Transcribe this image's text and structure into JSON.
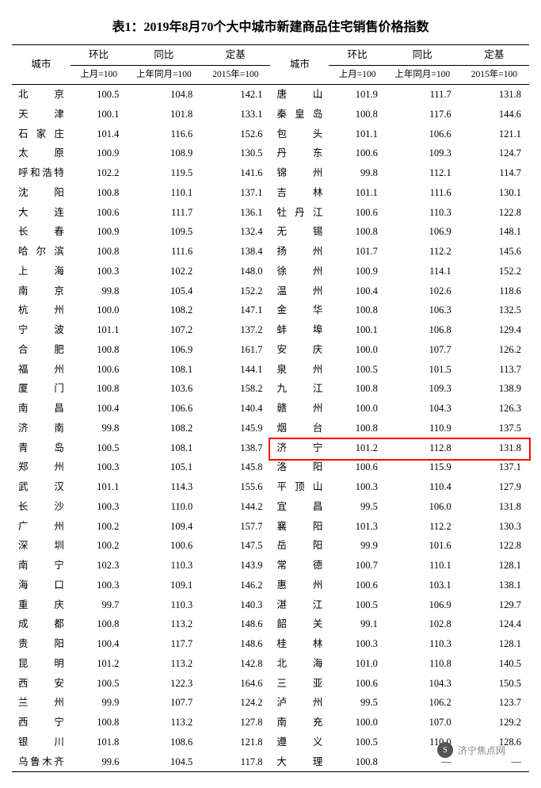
{
  "title": "表1：2019年8月70个大中城市新建商品住宅销售价格指数",
  "headers": {
    "city": "城市",
    "mom": "环比",
    "yoy": "同比",
    "base": "定基",
    "mom_sub": "上月=100",
    "yoy_sub": "上年同月=100",
    "base_sub": "2015年=100"
  },
  "highlight_city": "济　宁",
  "highlight_color": "#ff0000",
  "watermark": "济宁焦点网",
  "left": [
    {
      "city": "北　京",
      "mom": "100.5",
      "yoy": "104.8",
      "base": "142.1"
    },
    {
      "city": "天　津",
      "mom": "100.1",
      "yoy": "101.8",
      "base": "133.1"
    },
    {
      "city": "石家庄",
      "mom": "101.4",
      "yoy": "116.6",
      "base": "152.6"
    },
    {
      "city": "太　原",
      "mom": "100.9",
      "yoy": "108.9",
      "base": "130.5"
    },
    {
      "city": "呼和浩特",
      "mom": "102.2",
      "yoy": "119.5",
      "base": "141.6"
    },
    {
      "city": "沈　阳",
      "mom": "100.8",
      "yoy": "110.1",
      "base": "137.1"
    },
    {
      "city": "大　连",
      "mom": "100.6",
      "yoy": "111.7",
      "base": "136.1"
    },
    {
      "city": "长　春",
      "mom": "100.9",
      "yoy": "109.5",
      "base": "132.4"
    },
    {
      "city": "哈尔滨",
      "mom": "100.8",
      "yoy": "111.6",
      "base": "138.4"
    },
    {
      "city": "上　海",
      "mom": "100.3",
      "yoy": "102.2",
      "base": "148.0"
    },
    {
      "city": "南　京",
      "mom": "99.8",
      "yoy": "105.4",
      "base": "152.2"
    },
    {
      "city": "杭　州",
      "mom": "100.0",
      "yoy": "108.2",
      "base": "147.1"
    },
    {
      "city": "宁　波",
      "mom": "101.1",
      "yoy": "107.2",
      "base": "137.2"
    },
    {
      "city": "合　肥",
      "mom": "100.8",
      "yoy": "106.9",
      "base": "161.7"
    },
    {
      "city": "福　州",
      "mom": "100.6",
      "yoy": "108.1",
      "base": "144.1"
    },
    {
      "city": "厦　门",
      "mom": "100.8",
      "yoy": "103.6",
      "base": "158.2"
    },
    {
      "city": "南　昌",
      "mom": "100.4",
      "yoy": "106.6",
      "base": "140.4"
    },
    {
      "city": "济　南",
      "mom": "99.8",
      "yoy": "108.2",
      "base": "145.9"
    },
    {
      "city": "青　岛",
      "mom": "100.5",
      "yoy": "108.1",
      "base": "138.7"
    },
    {
      "city": "郑　州",
      "mom": "100.3",
      "yoy": "105.1",
      "base": "145.8"
    },
    {
      "city": "武　汉",
      "mom": "101.1",
      "yoy": "114.3",
      "base": "155.6"
    },
    {
      "city": "长　沙",
      "mom": "100.3",
      "yoy": "110.0",
      "base": "144.2"
    },
    {
      "city": "广　州",
      "mom": "100.2",
      "yoy": "109.4",
      "base": "157.7"
    },
    {
      "city": "深　圳",
      "mom": "100.2",
      "yoy": "100.6",
      "base": "147.5"
    },
    {
      "city": "南　宁",
      "mom": "102.3",
      "yoy": "110.3",
      "base": "143.9"
    },
    {
      "city": "海　口",
      "mom": "100.3",
      "yoy": "109.1",
      "base": "146.2"
    },
    {
      "city": "重　庆",
      "mom": "99.7",
      "yoy": "110.3",
      "base": "140.3"
    },
    {
      "city": "成　都",
      "mom": "100.8",
      "yoy": "113.2",
      "base": "148.6"
    },
    {
      "city": "贵　阳",
      "mom": "100.4",
      "yoy": "117.7",
      "base": "148.6"
    },
    {
      "city": "昆　明",
      "mom": "101.2",
      "yoy": "113.2",
      "base": "142.8"
    },
    {
      "city": "西　安",
      "mom": "100.5",
      "yoy": "122.3",
      "base": "164.6"
    },
    {
      "city": "兰　州",
      "mom": "99.9",
      "yoy": "107.7",
      "base": "124.2"
    },
    {
      "city": "西　宁",
      "mom": "100.8",
      "yoy": "113.2",
      "base": "127.8"
    },
    {
      "city": "银　川",
      "mom": "101.8",
      "yoy": "108.6",
      "base": "121.8"
    },
    {
      "city": "乌鲁木齐",
      "mom": "99.6",
      "yoy": "104.5",
      "base": "117.8"
    }
  ],
  "right": [
    {
      "city": "唐　山",
      "mom": "101.9",
      "yoy": "111.7",
      "base": "131.8"
    },
    {
      "city": "秦皇岛",
      "mom": "100.8",
      "yoy": "117.6",
      "base": "144.6"
    },
    {
      "city": "包　头",
      "mom": "101.1",
      "yoy": "106.6",
      "base": "121.1"
    },
    {
      "city": "丹　东",
      "mom": "100.6",
      "yoy": "109.3",
      "base": "124.7"
    },
    {
      "city": "锦　州",
      "mom": "99.8",
      "yoy": "112.1",
      "base": "114.7"
    },
    {
      "city": "吉　林",
      "mom": "101.1",
      "yoy": "111.6",
      "base": "130.1"
    },
    {
      "city": "牡丹江",
      "mom": "100.6",
      "yoy": "110.3",
      "base": "122.8"
    },
    {
      "city": "无　锡",
      "mom": "100.8",
      "yoy": "106.9",
      "base": "148.1"
    },
    {
      "city": "扬　州",
      "mom": "101.7",
      "yoy": "112.2",
      "base": "145.6"
    },
    {
      "city": "徐　州",
      "mom": "100.9",
      "yoy": "114.1",
      "base": "152.2"
    },
    {
      "city": "温　州",
      "mom": "100.4",
      "yoy": "102.6",
      "base": "118.6"
    },
    {
      "city": "金　华",
      "mom": "100.8",
      "yoy": "106.3",
      "base": "132.5"
    },
    {
      "city": "蚌　埠",
      "mom": "100.1",
      "yoy": "106.8",
      "base": "129.4"
    },
    {
      "city": "安　庆",
      "mom": "100.0",
      "yoy": "107.7",
      "base": "126.2"
    },
    {
      "city": "泉　州",
      "mom": "100.5",
      "yoy": "101.5",
      "base": "113.7"
    },
    {
      "city": "九　江",
      "mom": "100.8",
      "yoy": "109.3",
      "base": "138.9"
    },
    {
      "city": "赣　州",
      "mom": "100.0",
      "yoy": "104.3",
      "base": "126.3"
    },
    {
      "city": "烟　台",
      "mom": "100.8",
      "yoy": "110.9",
      "base": "137.5"
    },
    {
      "city": "济　宁",
      "mom": "101.2",
      "yoy": "112.8",
      "base": "131.8",
      "hl": true
    },
    {
      "city": "洛　阳",
      "mom": "100.6",
      "yoy": "115.9",
      "base": "137.1"
    },
    {
      "city": "平顶山",
      "mom": "100.3",
      "yoy": "110.4",
      "base": "127.9"
    },
    {
      "city": "宜　昌",
      "mom": "99.5",
      "yoy": "106.0",
      "base": "131.8"
    },
    {
      "city": "襄　阳",
      "mom": "101.3",
      "yoy": "112.2",
      "base": "130.3"
    },
    {
      "city": "岳　阳",
      "mom": "99.9",
      "yoy": "101.6",
      "base": "122.8"
    },
    {
      "city": "常　德",
      "mom": "100.7",
      "yoy": "110.1",
      "base": "128.1"
    },
    {
      "city": "惠　州",
      "mom": "100.6",
      "yoy": "103.1",
      "base": "138.1"
    },
    {
      "city": "湛　江",
      "mom": "100.5",
      "yoy": "106.9",
      "base": "129.7"
    },
    {
      "city": "韶　关",
      "mom": "99.1",
      "yoy": "102.8",
      "base": "124.4"
    },
    {
      "city": "桂　林",
      "mom": "100.3",
      "yoy": "110.3",
      "base": "128.1"
    },
    {
      "city": "北　海",
      "mom": "101.0",
      "yoy": "110.8",
      "base": "140.5"
    },
    {
      "city": "三　亚",
      "mom": "100.6",
      "yoy": "104.3",
      "base": "150.5"
    },
    {
      "city": "泸　州",
      "mom": "99.5",
      "yoy": "106.2",
      "base": "123.7"
    },
    {
      "city": "南　充",
      "mom": "100.0",
      "yoy": "107.0",
      "base": "129.2"
    },
    {
      "city": "遵　义",
      "mom": "100.5",
      "yoy": "110.0",
      "base": "128.6"
    },
    {
      "city": "大　理",
      "mom": "100.8",
      "yoy": "—",
      "base": "—"
    }
  ]
}
